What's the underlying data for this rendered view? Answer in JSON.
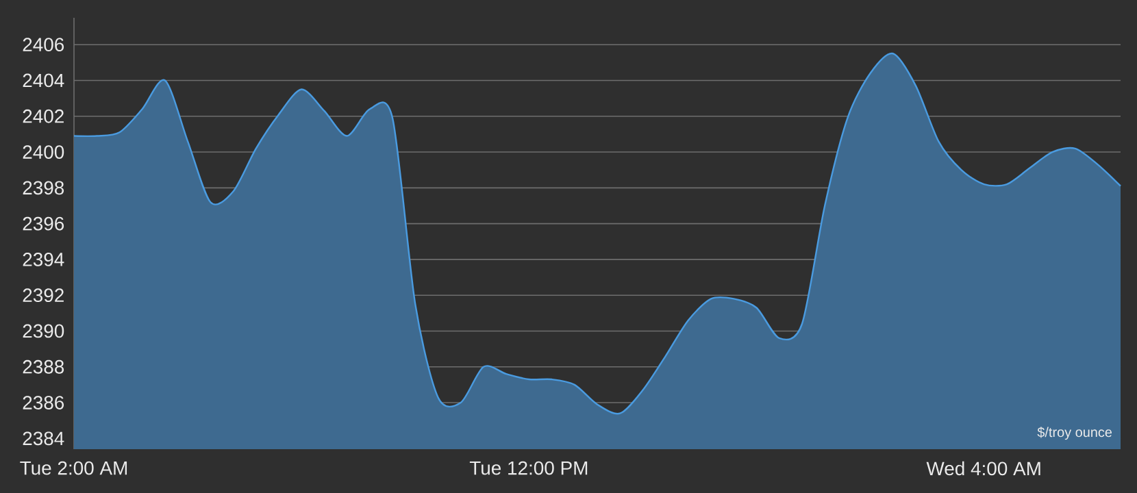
{
  "chart_data": {
    "type": "area",
    "categories": [
      "Tue 2:00 AM",
      null,
      null,
      null,
      null,
      null,
      null,
      null,
      null,
      null,
      null,
      null,
      null,
      null,
      null,
      null,
      null,
      null,
      null,
      null,
      "Tue 12:00 PM",
      null,
      null,
      null,
      null,
      null,
      null,
      null,
      null,
      null,
      null,
      null,
      null,
      null,
      null,
      null,
      null,
      null,
      null,
      null,
      "Wed 4:00 AM",
      null,
      null,
      null,
      null,
      null,
      null
    ],
    "series": [
      {
        "color": "#4a9be0",
        "values": [
          2400.9,
          2400.9,
          2401.1,
          2402.4,
          2404.0,
          2400.6,
          2397.2,
          2397.8,
          2400.2,
          2402.1,
          2403.5,
          2402.3,
          2400.9,
          2402.4,
          2401.9,
          2391.5,
          2386.3,
          2386.0,
          2388.0,
          2387.6,
          2387.3,
          2387.3,
          2387.0,
          2385.9,
          2385.4,
          2386.7,
          2388.6,
          2390.6,
          2391.8,
          2391.8,
          2391.3,
          2389.6,
          2390.4,
          2397.0,
          2401.9,
          2404.4,
          2405.5,
          2403.7,
          2400.6,
          2399.0,
          2398.2,
          2398.2,
          2399.1,
          2400.0,
          2400.2,
          2399.3,
          2398.1
        ]
      }
    ],
    "ylim": [
      2383.4,
      2407.5
    ],
    "yticks": [
      2384,
      2386,
      2388,
      2390,
      2392,
      2394,
      2396,
      2398,
      2400,
      2402,
      2404,
      2406
    ],
    "grid": "y",
    "annotations": [
      "$/troy ounce"
    ]
  }
}
